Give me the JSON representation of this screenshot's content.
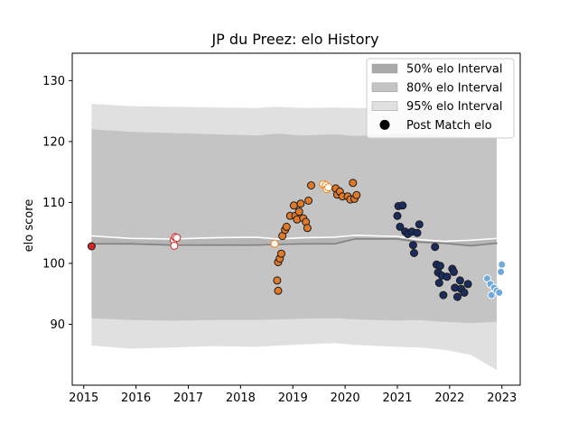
{
  "chart_data": {
    "type": "scatter",
    "title": "JP du Preez: elo History",
    "xlabel": "",
    "ylabel": "elo score",
    "xlim": [
      2014.78,
      2023.35
    ],
    "ylim": [
      80.0,
      134.5
    ],
    "x_ticks": [
      2015,
      2016,
      2017,
      2018,
      2019,
      2020,
      2021,
      2022,
      2023
    ],
    "y_ticks": [
      90,
      100,
      110,
      120,
      130
    ],
    "grid": false,
    "legend_position": "top-right",
    "legend": [
      {
        "label": "50% elo Interval",
        "kind": "band",
        "color": "#a9a9a9"
      },
      {
        "label": "80% elo Interval",
        "kind": "band",
        "color": "#c4c4c4"
      },
      {
        "label": "95% elo Interval",
        "kind": "band",
        "color": "#e0e0e0"
      },
      {
        "label": "Post Match elo",
        "kind": "marker",
        "color": "#000000"
      }
    ],
    "colors": {
      "band50": "#a9a9a9",
      "band80": "#c4c4c4",
      "band95": "#e0e0e0",
      "median_line": "#ffffff",
      "lower_line": "#808080"
    },
    "bands": {
      "x": [
        2015.15,
        2015.9,
        2016.7,
        2017.5,
        2018.3,
        2018.7,
        2019.2,
        2019.8,
        2020.2,
        2021.0,
        2021.4,
        2021.9,
        2022.4,
        2022.9,
        2022.9
      ],
      "p97_5": [
        126.2,
        125.8,
        125.7,
        125.6,
        125.5,
        125.7,
        125.5,
        125.6,
        125.5,
        125.6,
        125.7,
        125.5,
        124.4,
        124.0,
        124.3
      ],
      "p90": [
        122.0,
        121.6,
        121.4,
        121.2,
        121.0,
        121.3,
        121.0,
        121.2,
        120.9,
        121.3,
        121.2,
        120.9,
        120.8,
        120.7,
        120.6
      ],
      "p75": [
        109.5,
        109.1,
        108.9,
        108.8,
        108.5,
        108.8,
        108.6,
        108.7,
        108.4,
        108.8,
        108.6,
        108.5,
        108.4,
        108.2,
        108.1
      ],
      "median": [
        104.5,
        104.1,
        104.0,
        104.2,
        104.3,
        104.0,
        104.2,
        104.3,
        104.6,
        104.4,
        103.9,
        103.6,
        103.8,
        104.1,
        104.0
      ],
      "p25": [
        103.2,
        103.2,
        103.0,
        103.0,
        103.0,
        103.1,
        103.2,
        103.2,
        104.0,
        104.0,
        103.5,
        103.3,
        102.9,
        103.3,
        103.4
      ],
      "p10": [
        97.6,
        97.4,
        97.3,
        97.4,
        97.5,
        97.6,
        97.7,
        97.8,
        97.6,
        97.4,
        97.5,
        97.2,
        97.0,
        97.2,
        97.4
      ],
      "p2_5": [
        91.0,
        90.7,
        90.6,
        90.7,
        90.7,
        90.8,
        90.9,
        91.0,
        90.8,
        90.6,
        90.7,
        90.4,
        90.2,
        90.4,
        90.6
      ],
      "p0": [
        86.5,
        86.0,
        86.2,
        86.4,
        86.3,
        86.5,
        86.7,
        86.9,
        86.6,
        86.3,
        86.2,
        85.8,
        85.0,
        82.5,
        82.5
      ]
    },
    "series": [
      {
        "color": "#d62728",
        "filled": true,
        "points": [
          [
            2015.15,
            102.8
          ]
        ]
      },
      {
        "color": "#d62728",
        "filled": false,
        "points": [
          [
            2016.72,
            103.8
          ],
          [
            2016.75,
            104.3
          ],
          [
            2016.73,
            102.9
          ],
          [
            2016.78,
            104.2
          ]
        ]
      },
      {
        "color": "#ff7f0e",
        "filled": false,
        "points": [
          [
            2018.65,
            103.2
          ],
          [
            2019.58,
            113.0
          ],
          [
            2019.63,
            112.8
          ],
          [
            2019.65,
            112.2
          ],
          [
            2019.68,
            112.5
          ]
        ]
      },
      {
        "color": "#e07a28",
        "filled": true,
        "points": [
          [
            2018.72,
            95.5
          ],
          [
            2018.7,
            97.2
          ],
          [
            2018.72,
            100.2
          ],
          [
            2018.75,
            100.8
          ],
          [
            2018.78,
            101.6
          ],
          [
            2018.8,
            104.5
          ],
          [
            2018.85,
            105.5
          ],
          [
            2018.88,
            106.0
          ],
          [
            2018.95,
            107.8
          ],
          [
            2019.02,
            109.5
          ],
          [
            2019.05,
            107.8
          ],
          [
            2019.08,
            107.2
          ],
          [
            2019.12,
            108.5
          ],
          [
            2019.15,
            109.8
          ],
          [
            2019.2,
            107.4
          ],
          [
            2019.25,
            106.8
          ],
          [
            2019.28,
            105.8
          ],
          [
            2019.3,
            110.3
          ],
          [
            2019.35,
            112.8
          ],
          [
            2019.82,
            112.3
          ],
          [
            2019.85,
            111.3
          ],
          [
            2019.9,
            111.8
          ],
          [
            2019.95,
            111.0
          ],
          [
            2020.05,
            111.0
          ],
          [
            2020.1,
            110.5
          ],
          [
            2020.15,
            113.2
          ],
          [
            2020.18,
            110.6
          ],
          [
            2020.22,
            111.2
          ]
        ]
      },
      {
        "color": "#1a2b5e",
        "filled": true,
        "points": [
          [
            2021.0,
            107.8
          ],
          [
            2021.02,
            109.4
          ],
          [
            2021.05,
            106.0
          ],
          [
            2021.1,
            109.5
          ],
          [
            2021.15,
            105.2
          ],
          [
            2021.2,
            104.8
          ],
          [
            2021.28,
            105.2
          ],
          [
            2021.3,
            103.0
          ],
          [
            2021.32,
            101.7
          ],
          [
            2021.38,
            105.0
          ],
          [
            2021.42,
            106.4
          ],
          [
            2021.72,
            102.7
          ],
          [
            2021.75,
            99.8
          ],
          [
            2021.78,
            98.5
          ],
          [
            2021.8,
            96.8
          ],
          [
            2021.82,
            99.6
          ],
          [
            2021.85,
            98.0
          ],
          [
            2021.88,
            94.8
          ],
          [
            2021.95,
            97.8
          ],
          [
            2022.05,
            99.1
          ],
          [
            2022.08,
            98.6
          ],
          [
            2022.1,
            96.0
          ],
          [
            2022.15,
            94.5
          ],
          [
            2022.2,
            97.2
          ],
          [
            2022.22,
            95.8
          ],
          [
            2022.28,
            95.2
          ],
          [
            2022.35,
            96.6
          ]
        ]
      },
      {
        "color": "#6fa8dc",
        "filled": true,
        "edge": "#ffffff",
        "points": [
          [
            2022.72,
            97.5
          ],
          [
            2022.78,
            96.6
          ],
          [
            2022.8,
            94.8
          ],
          [
            2022.85,
            96.0
          ],
          [
            2022.9,
            95.5
          ],
          [
            2022.95,
            95.2
          ],
          [
            2022.98,
            98.6
          ],
          [
            2023.0,
            99.8
          ]
        ]
      }
    ]
  }
}
